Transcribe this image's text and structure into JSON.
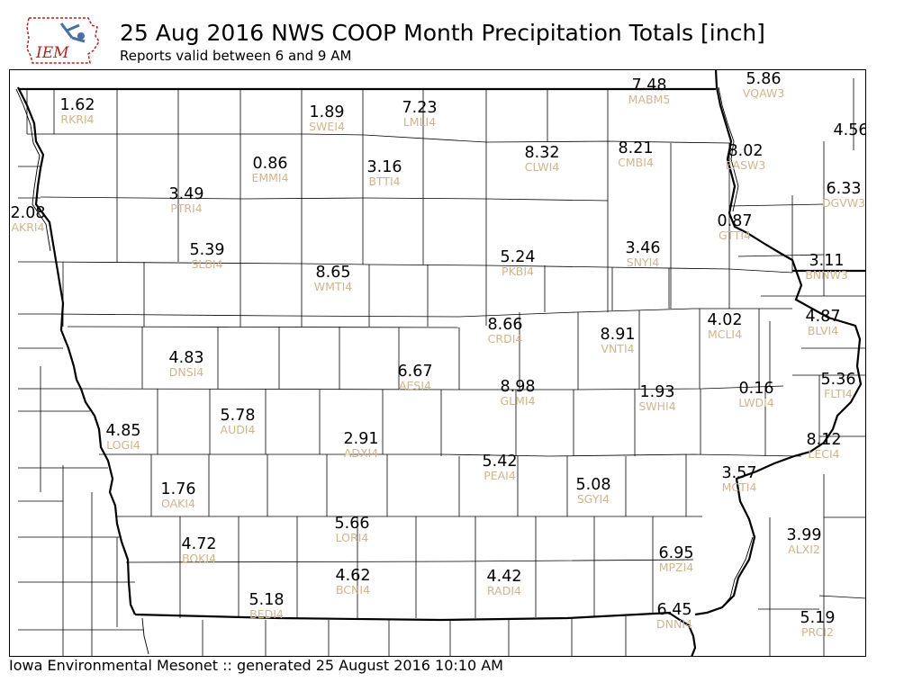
{
  "header": {
    "logo_text": "IEM",
    "title": "25 Aug 2016 NWS COOP Month Precipitation Totals [inch]",
    "subtitle": "Reports valid between 6 and 9 AM"
  },
  "footer": {
    "text": "Iowa Environmental Mesonet :: generated 25 August 2016 10:10 AM"
  },
  "colors": {
    "station_id": "#d2b48c",
    "value": "#000000",
    "county_line": "#000000",
    "state_line": "#000000"
  },
  "stations": [
    {
      "id": "RKRI4",
      "value": "1.62"
    },
    {
      "id": "SWEI4",
      "value": "1.89"
    },
    {
      "id": "LMLI4",
      "value": "7.23"
    },
    {
      "id": "MABM5",
      "value": "7.48"
    },
    {
      "id": "VQAW3",
      "value": "5.86"
    },
    {
      "id": "CLWI4",
      "value": "8.32"
    },
    {
      "id": "CMBI4",
      "value": "8.21"
    },
    {
      "id": "EASW3",
      "value": "8.02"
    },
    {
      "id": "EMMI4",
      "value": "0.86"
    },
    {
      "id": "BTTI4",
      "value": "3.16"
    },
    {
      "id": "PTRI4",
      "value": "3.49"
    },
    {
      "id": "AKRI4",
      "value": "2.08"
    },
    {
      "id": "SLBI4",
      "value": "5.39"
    },
    {
      "id": "WMTI4",
      "value": "8.65"
    },
    {
      "id": "PKBI4",
      "value": "5.24"
    },
    {
      "id": "SNYI4",
      "value": "3.46"
    },
    {
      "id": "GTTI4",
      "value": "0.87"
    },
    {
      "id": "DGVW3",
      "value": "6.33"
    },
    {
      "id": "BNNW3",
      "value": "3.11"
    },
    {
      "id": "CRDI4",
      "value": "8.66"
    },
    {
      "id": "VNTI4",
      "value": "8.91"
    },
    {
      "id": "MCLI4",
      "value": "4.02"
    },
    {
      "id": "BLVI4",
      "value": "4.87"
    },
    {
      "id": "DNSI4",
      "value": "4.83"
    },
    {
      "id": "AESI4",
      "value": "6.67"
    },
    {
      "id": "GLMI4",
      "value": "8.98"
    },
    {
      "id": "SWHI4",
      "value": "1.93"
    },
    {
      "id": "LWDI4",
      "value": "0.16"
    },
    {
      "id": "FLTI4",
      "value": "5.36"
    },
    {
      "id": "LOGI4",
      "value": "4.85"
    },
    {
      "id": "AUDI4",
      "value": "5.78"
    },
    {
      "id": "ADXI4",
      "value": "2.91"
    },
    {
      "id": "PEAI4",
      "value": "5.42"
    },
    {
      "id": "LECI4",
      "value": "8.12"
    },
    {
      "id": "OAKI4",
      "value": "1.76"
    },
    {
      "id": "SGYI4",
      "value": "5.08"
    },
    {
      "id": "MCTI4",
      "value": "3.57"
    },
    {
      "id": "LORI4",
      "value": "5.66"
    },
    {
      "id": "BOKI4",
      "value": "4.72"
    },
    {
      "id": "MPZI4",
      "value": "6.95"
    },
    {
      "id": "ALXI2",
      "value": "3.99"
    },
    {
      "id": "BCNI4",
      "value": "4.62"
    },
    {
      "id": "RADI4",
      "value": "4.42"
    },
    {
      "id": "BEDI4",
      "value": "5.18"
    },
    {
      "id": "DNNI4",
      "value": "6.45"
    },
    {
      "id": "PRCI2",
      "value": "5.19"
    },
    {
      "id": "",
      "value": "4.56"
    }
  ]
}
